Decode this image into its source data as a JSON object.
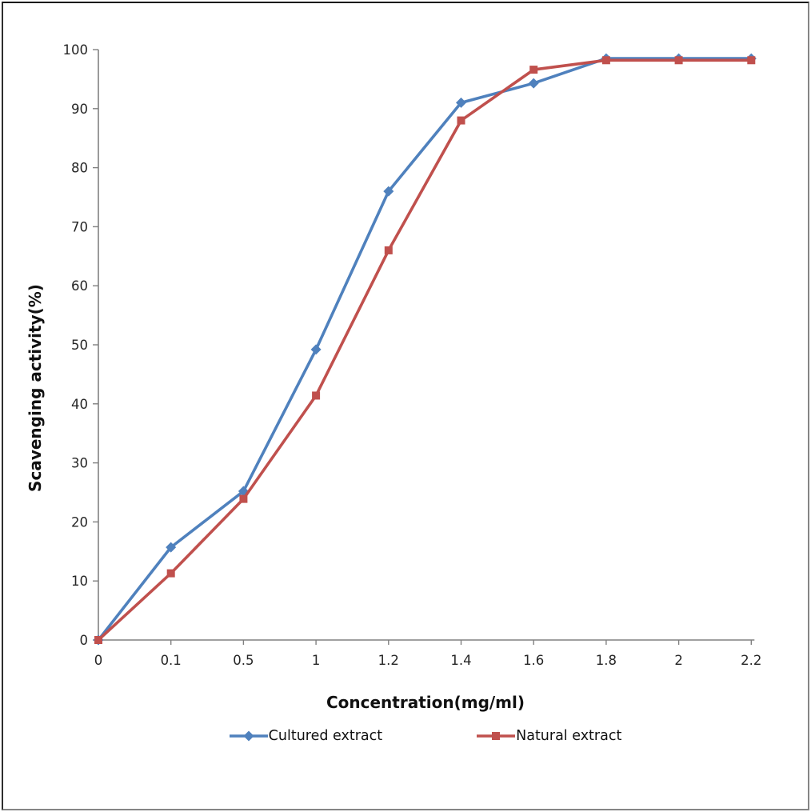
{
  "chart_data": {
    "type": "line",
    "categories": [
      "0",
      "0.1",
      "0.5",
      "1",
      "1.2",
      "1.4",
      "1.6",
      "1.8",
      "2",
      "2.2"
    ],
    "series": [
      {
        "name": "Cultured extract",
        "marker": "diamond",
        "color": "#4F81BD",
        "values": [
          0,
          15.7,
          25.2,
          49.2,
          76,
          91,
          94.3,
          98.5,
          98.5,
          98.5
        ]
      },
      {
        "name": "Natural extract",
        "marker": "square",
        "color": "#C0504D",
        "values": [
          0,
          11.3,
          23.9,
          41.4,
          66,
          88,
          96.6,
          98.2,
          98.2,
          98.2
        ]
      }
    ],
    "title": "",
    "xlabel": "Concentration(mg/ml)",
    "ylabel": "Scavenging activity(%)",
    "ylim": [
      0,
      100
    ],
    "ytick_step": 10,
    "yticks": [
      "0",
      "10",
      "20",
      "30",
      "40",
      "50",
      "60",
      "70",
      "80",
      "90",
      "100"
    ],
    "grid": false,
    "legend_position": "bottom",
    "axis_color": "#808080",
    "tick_label_color": "#262626"
  }
}
